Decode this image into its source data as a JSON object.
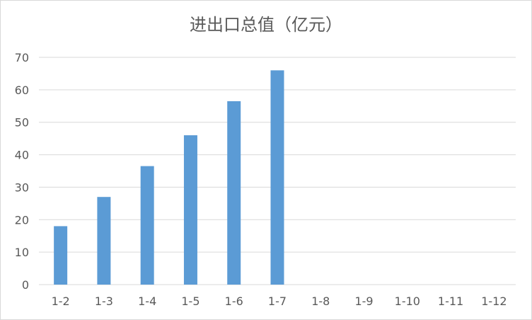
{
  "chart_data": {
    "type": "bar",
    "title": "进出口总值（亿元）",
    "categories": [
      "1-2",
      "1-3",
      "1-4",
      "1-5",
      "1-6",
      "1-7",
      "1-8",
      "1-9",
      "1-10",
      "1-11",
      "1-12"
    ],
    "values": [
      18,
      27,
      36.5,
      46,
      56.5,
      66,
      null,
      null,
      null,
      null,
      null
    ],
    "ylim": [
      0,
      70
    ],
    "yticks": [
      0,
      10,
      20,
      30,
      40,
      50,
      60,
      70
    ],
    "grid": true,
    "bar_color": "#5b9bd5",
    "grid_color": "#d9d9d9"
  }
}
